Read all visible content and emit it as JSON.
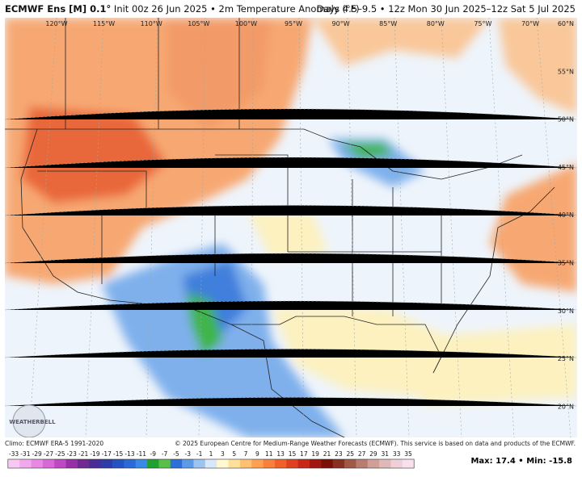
{
  "header": {
    "model": "ECMWF Ens [M] 0.1°",
    "description": "Init 00z 26 Jun 2025 • 2m Temperature Anomaly (°F)",
    "valid": "Days 4.5–9.5 • 12z Mon 30 Jun 2025–12z Sat 5 Jul 2025"
  },
  "map": {
    "longitudes": [
      "120°W",
      "115°W",
      "110°W",
      "105°W",
      "100°W",
      "95°W",
      "90°W",
      "85°W",
      "80°W",
      "75°W",
      "70°W"
    ],
    "latitudes": [
      "60°N",
      "55°N",
      "50°N",
      "45°N",
      "40°N",
      "35°N",
      "30°N",
      "25°N",
      "20°N"
    ],
    "logo": "WEATHERBELL"
  },
  "footer": {
    "climo": "Climo: ECMWF ERA-5 1991-2020",
    "copyright": "© 2025 European Centre for Medium-Range Weather Forecasts (ECMWF). This service is based on data and products of the ECMWF."
  },
  "colorbar": {
    "ticks": [
      -33,
      -31,
      -29,
      -27,
      -25,
      -23,
      -21,
      -19,
      -17,
      -15,
      -13,
      -11,
      -9,
      -7,
      -5,
      -3,
      -1,
      1,
      3,
      5,
      7,
      9,
      11,
      13,
      15,
      17,
      19,
      21,
      23,
      25,
      27,
      29,
      31,
      33,
      35
    ],
    "colors": [
      "#f8c8f2",
      "#f2a8ec",
      "#e888e4",
      "#d868d8",
      "#c048c4",
      "#9830a8",
      "#702a90",
      "#4a2c98",
      "#2c3ca8",
      "#2452c0",
      "#2a6ad8",
      "#3a88e8",
      "#20a030",
      "#58c048",
      "#2d6fd8",
      "#5c9ae8",
      "#9cc4f0",
      "#d8e8f8",
      "#fff8d0",
      "#ffe098",
      "#ffc070",
      "#ffa050",
      "#f88038",
      "#f06028",
      "#e04020",
      "#c82818",
      "#a01810",
      "#7a1008",
      "#8a3020",
      "#a05848",
      "#b87c70",
      "#d0a098",
      "#e0b8b8",
      "#f0d0d8",
      "#f8e0ec"
    ]
  },
  "stats": {
    "max_label": "Max:",
    "max": 17.4,
    "separator": "•",
    "min_label": "Min:",
    "min": -15.8
  }
}
